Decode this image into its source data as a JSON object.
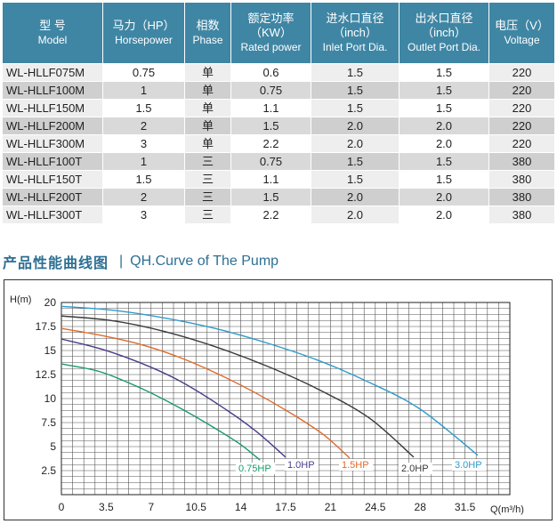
{
  "table": {
    "headers": [
      {
        "zh": "型 号",
        "en": "Model"
      },
      {
        "zh": "马力（HP）",
        "en": "Horsepower"
      },
      {
        "zh": "相数",
        "en": "Phase"
      },
      {
        "zh": "额定功率",
        "zh2": "（KW）",
        "en": "Rated power"
      },
      {
        "zh": "进水口直径",
        "zh2": "（inch）",
        "en": "Inlet Port Dia."
      },
      {
        "zh": "出水口直径",
        "zh2": "（inch）",
        "en": "Outlet Port Dia."
      },
      {
        "zh": "电压（V）",
        "en": "Voltage"
      }
    ],
    "rows": [
      [
        "WL-HLLF075M",
        "0.75",
        "单",
        "0.6",
        "1.5",
        "1.5",
        "220"
      ],
      [
        "WL-HLLF100M",
        "1",
        "单",
        "0.75",
        "1.5",
        "1.5",
        "220"
      ],
      [
        "WL-HLLF150M",
        "1.5",
        "单",
        "1.1",
        "1.5",
        "1.5",
        "220"
      ],
      [
        "WL-HLLF200M",
        "2",
        "单",
        "1.5",
        "2.0",
        "2.0",
        "220"
      ],
      [
        "WL-HLLF300M",
        "3",
        "单",
        "2.2",
        "2.0",
        "2.0",
        "220"
      ],
      [
        "WL-HLLF100T",
        "1",
        "三",
        "0.75",
        "1.5",
        "1.5",
        "380"
      ],
      [
        "WL-HLLF150T",
        "1.5",
        "三",
        "1.1",
        "1.5",
        "1.5",
        "380"
      ],
      [
        "WL-HLLF200T",
        "2",
        "三",
        "1.5",
        "2.0",
        "2.0",
        "380"
      ],
      [
        "WL-HLLF300T",
        "3",
        "三",
        "2.2",
        "2.0",
        "2.0",
        "380"
      ]
    ]
  },
  "section": {
    "title_zh": "产品性能曲线图",
    "separator": "|",
    "title_en": "QH.Curve of The Pump"
  },
  "chart_data": {
    "type": "line",
    "title": "",
    "xlabel": "Q(m³/h)",
    "ylabel": "H(m)",
    "xlim": [
      0,
      35
    ],
    "ylim": [
      0,
      20
    ],
    "x_ticks": [
      "0",
      "3.5",
      "7",
      "10.5",
      "14",
      "17.5",
      "21",
      "24.5",
      "28",
      "31.5"
    ],
    "y_ticks": [
      "2.5",
      "5",
      "7.5",
      "10",
      "12.5",
      "15",
      "17.5",
      "20"
    ],
    "grid": true,
    "series": [
      {
        "name": "0.75HP",
        "color": "#1a9a6a",
        "x": [
          0,
          3,
          6,
          9,
          12,
          14,
          15.5
        ],
        "y": [
          13.6,
          12.8,
          11.2,
          9.2,
          6.9,
          5.2,
          3.6
        ]
      },
      {
        "name": "1.0HP",
        "color": "#4a3b8c",
        "x": [
          0,
          3,
          6,
          9,
          12,
          15,
          17.5
        ],
        "y": [
          16.2,
          15.2,
          13.8,
          12.0,
          9.6,
          6.8,
          3.9
        ]
      },
      {
        "name": "1.5HP",
        "color": "#e06a2a",
        "x": [
          0,
          3,
          6,
          9,
          12,
          15,
          18,
          20.5,
          22.5
        ],
        "y": [
          17.3,
          16.6,
          15.7,
          14.4,
          12.7,
          10.7,
          8.4,
          6.2,
          3.8
        ]
      },
      {
        "name": "2.0HP",
        "color": "#3a3a3a",
        "x": [
          0,
          4,
          8,
          12,
          16,
          20,
          24,
          27.5
        ],
        "y": [
          18.6,
          18.1,
          17.0,
          15.4,
          13.4,
          11.0,
          8.0,
          3.9
        ]
      },
      {
        "name": "3.0HP",
        "color": "#2e9bcb",
        "x": [
          0,
          4,
          8,
          12,
          16,
          20,
          24,
          28,
          32.5
        ],
        "y": [
          19.6,
          19.2,
          18.4,
          17.3,
          15.8,
          14.0,
          11.7,
          8.9,
          4.1
        ]
      }
    ]
  }
}
